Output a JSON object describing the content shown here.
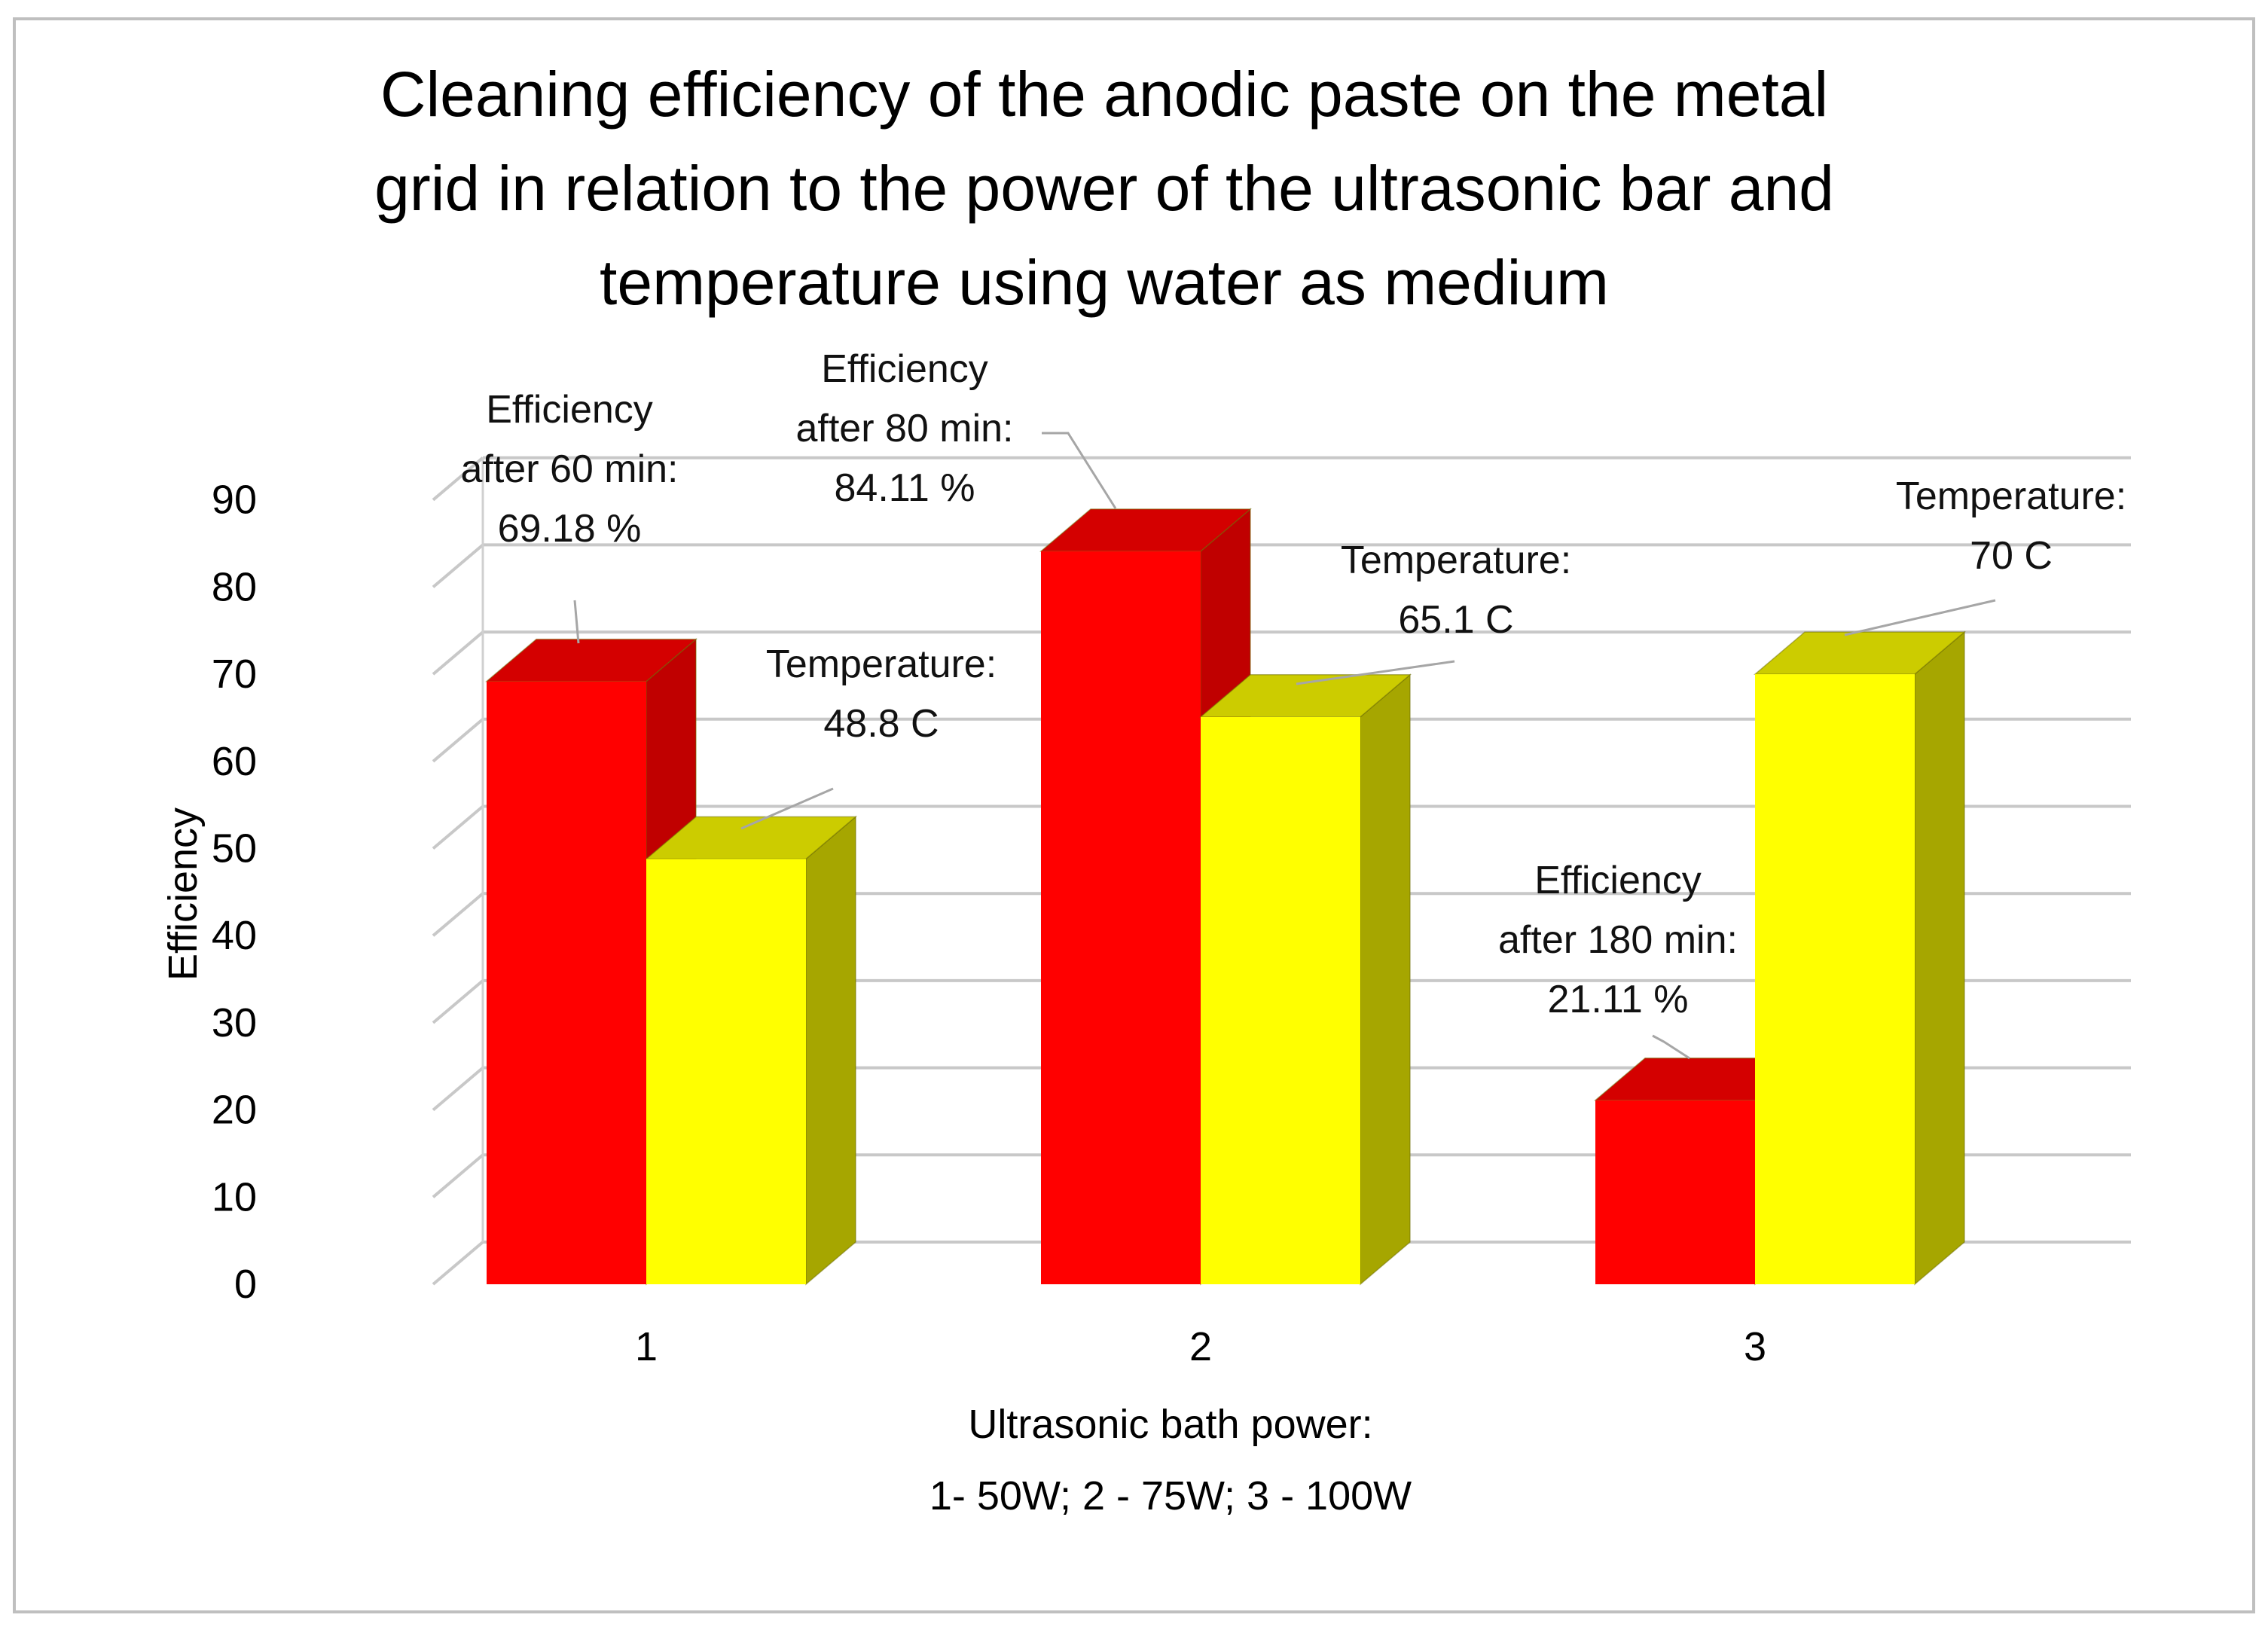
{
  "chart_data": {
    "type": "bar",
    "title_lines": [
      "Cleaning efficiency of the anodic paste on the metal",
      "grid in relation to the power of the ultrasonic bar and",
      "temperature using water as medium"
    ],
    "categories": [
      "1",
      "2",
      "3"
    ],
    "series": [
      {
        "values": [
          69.18,
          84.11,
          21.11
        ],
        "color": "#ff0000",
        "side_color": "#c00000",
        "top_color": "#d40000",
        "labels": [
          [
            "Efficiency",
            "after 60 min:",
            "69.18 %"
          ],
          [
            "Efficiency",
            "after 80 min:",
            "84.11 %"
          ],
          [
            "Efficiency",
            "after 180 min:",
            "21.11 %"
          ]
        ]
      },
      {
        "values": [
          48.8,
          65.1,
          70
        ],
        "color": "#ffff00",
        "side_color": "#a6a600",
        "top_color": "#cccc00",
        "labels": [
          [
            "Temperature:",
            "48.8 C"
          ],
          [
            "Temperature:",
            "65.1 C"
          ],
          [
            "Temperature:",
            "70 C"
          ]
        ]
      }
    ],
    "ylabel": "Efficiency",
    "xlabel_lines": [
      "Ultrasonic bath power:",
      "1- 50W; 2 - 75W; 3 - 100W"
    ],
    "ylim": [
      0,
      90
    ],
    "yticks": [
      0,
      10,
      20,
      30,
      40,
      50,
      60,
      70,
      80,
      90
    ],
    "grid": true,
    "style": "3d-clustered-column"
  }
}
